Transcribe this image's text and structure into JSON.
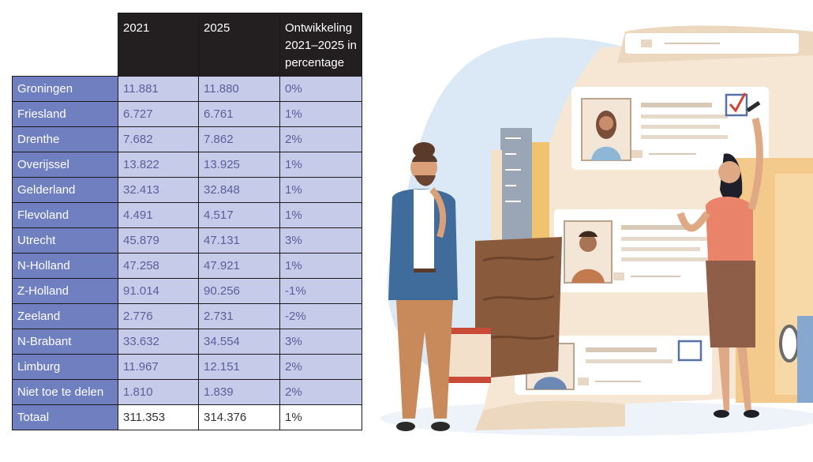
{
  "table": {
    "headers": [
      "",
      "2021",
      "2025",
      "Ontwikkeling 2021–2025 in percentage"
    ],
    "rows": [
      {
        "region": "Groningen",
        "y2021": "11.881",
        "y2025": "11.880",
        "pct": "0%"
      },
      {
        "region": "Friesland",
        "y2021": "6.727",
        "y2025": "6.761",
        "pct": "1%"
      },
      {
        "region": "Drenthe",
        "y2021": "7.682",
        "y2025": "7.862",
        "pct": "2%"
      },
      {
        "region": "Overijssel",
        "y2021": "13.822",
        "y2025": "13.925",
        "pct": "1%"
      },
      {
        "region": "Gelderland",
        "y2021": "32.413",
        "y2025": "32.848",
        "pct": "1%"
      },
      {
        "region": "Flevoland",
        "y2021": "4.491",
        "y2025": "4.517",
        "pct": "1%"
      },
      {
        "region": "Utrecht",
        "y2021": "45.879",
        "y2025": "47.131",
        "pct": "3%"
      },
      {
        "region": "N-Holland",
        "y2021": "47.258",
        "y2025": "47.921",
        "pct": "1%"
      },
      {
        "region": "Z-Holland",
        "y2021": "91.014",
        "y2025": "90.256",
        "pct": "-1%"
      },
      {
        "region": "Zeeland",
        "y2021": "2.776",
        "y2025": "2.731",
        "pct": "-2%"
      },
      {
        "region": "N-Brabant",
        "y2021": "33.632",
        "y2025": "34.554",
        "pct": "3%"
      },
      {
        "region": "Limburg",
        "y2021": "11.967",
        "y2025": "12.151",
        "pct": "2%"
      },
      {
        "region": "Niet toe te delen",
        "y2021": "1.810",
        "y2025": "1.839",
        "pct": "2%"
      }
    ],
    "total": {
      "region": "Totaal",
      "y2021": "311.353",
      "y2025": "314.376",
      "pct": "1%"
    }
  },
  "colors": {
    "header_bg": "#231f20",
    "region_bg": "#6f7fbf",
    "value_bg": "#c6cbea",
    "value_text": "#5a5f9a"
  },
  "illustration": {
    "subject": "recruiter-with-candidate-profiles",
    "icons": [
      "candidate-card-icon",
      "checkmark-icon",
      "pencil-icon",
      "ruler-icon",
      "folder-icon"
    ]
  }
}
